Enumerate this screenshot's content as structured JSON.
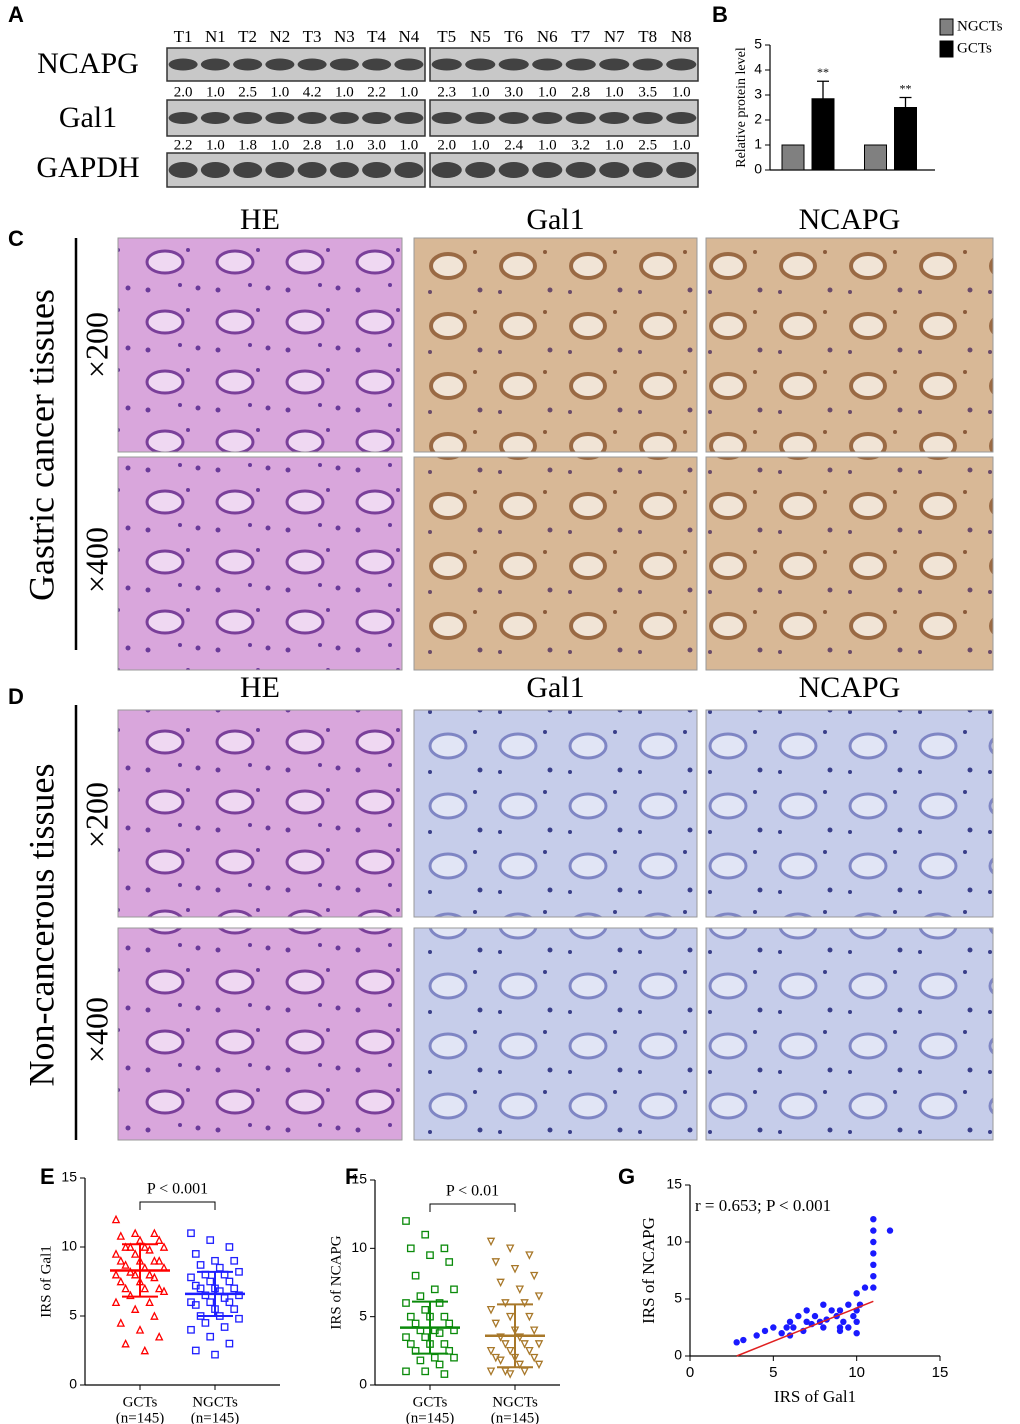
{
  "panel_labels": [
    "A",
    "B",
    "C",
    "D",
    "E",
    "F",
    "G"
  ],
  "blot": {
    "proteins": [
      "NCAPG",
      "Gal1",
      "GAPDH"
    ],
    "lanes": [
      "T1",
      "N1",
      "T2",
      "N2",
      "T3",
      "N3",
      "T4",
      "N4",
      "T5",
      "N5",
      "T6",
      "N6",
      "T7",
      "N7",
      "T8",
      "N8"
    ],
    "ncapg_ratios": [
      "2.0",
      "1.0",
      "2.5",
      "1.0",
      "4.2",
      "1.0",
      "2.2",
      "1.0",
      "2.3",
      "1.0",
      "3.0",
      "1.0",
      "2.8",
      "1.0",
      "3.5",
      "1.0"
    ],
    "gal1_ratios": [
      "2.2",
      "1.0",
      "1.8",
      "1.0",
      "2.8",
      "1.0",
      "3.0",
      "1.0",
      "2.0",
      "1.0",
      "2.4",
      "1.0",
      "3.2",
      "1.0",
      "2.5",
      "1.0"
    ]
  },
  "ihc": {
    "columns": [
      "HE",
      "Gal1",
      "NCAPG"
    ],
    "cancer_label": "Gastric cancer tissues",
    "noncancer_label": "Non-cancerous tissues",
    "magnifications": [
      "×200",
      "×400"
    ]
  },
  "chart_data": [
    {
      "type": "bar",
      "y_label": "Relative protein level",
      "categories": [
        null,
        null
      ],
      "series": [
        {
          "name": "NGCTs",
          "color": "#808080",
          "values": [
            1,
            1
          ]
        },
        {
          "name": "GCTs",
          "color": "#000000",
          "values": [
            2.85,
            2.5
          ],
          "errors": [
            0.7,
            0.4
          ],
          "annotations": [
            "**",
            "**"
          ]
        }
      ],
      "ylim": [
        0,
        5
      ],
      "yticks": [
        0,
        1,
        2,
        3,
        4,
        5
      ],
      "legend": "top-right"
    },
    {
      "type": "strip",
      "y_label": "IRS of Gal1",
      "annotation": "P < 0.001",
      "series": [
        {
          "name": "GCTs",
          "n_label": "(n=145)",
          "color": "#ff0000",
          "marker": "triangle",
          "mean": 8.3,
          "sd": 1.9,
          "values": [
            12,
            11,
            11,
            10.8,
            10.5,
            10.5,
            10,
            10,
            10,
            10,
            9.8,
            9.5,
            9.5,
            9,
            9,
            9,
            9,
            8.7,
            8.5,
            8.5,
            8.2,
            8,
            8,
            8,
            7.8,
            7.5,
            7.5,
            7,
            7,
            7,
            6.8,
            6.5,
            6,
            6,
            5.5,
            5,
            4.5,
            4,
            3.5,
            3,
            2.5
          ]
        },
        {
          "name": "NGCTs",
          "n_label": "(n=145)",
          "color": "#1f1fff",
          "marker": "square",
          "mean": 6.6,
          "sd": 1.6,
          "values": [
            11,
            10.5,
            10,
            9.5,
            9,
            9,
            8.7,
            8.5,
            8.2,
            8,
            8,
            7.8,
            7.5,
            7.5,
            7.2,
            7,
            7,
            7,
            6.8,
            6.5,
            6.5,
            6.3,
            6,
            6,
            6,
            5.8,
            5.5,
            5.5,
            5,
            5,
            4.8,
            4.5,
            4.2,
            4,
            3.5,
            3,
            2.5,
            2.2
          ]
        }
      ],
      "ylim": [
        0,
        15
      ],
      "yticks": [
        0,
        5,
        10,
        15
      ]
    },
    {
      "type": "strip",
      "y_label": "IRS of NCAPG",
      "annotation": "P < 0.01",
      "series": [
        {
          "name": "GCTs",
          "n_label": "(n=145)",
          "color": "#0a8a0a",
          "marker": "square",
          "mean": 4.2,
          "sd": 1.9,
          "values": [
            12,
            11,
            10,
            10,
            9.5,
            9,
            8,
            7,
            7,
            6.5,
            6,
            6,
            5.5,
            5,
            5,
            5,
            4.5,
            4.5,
            4,
            4,
            4,
            3.8,
            3.5,
            3.5,
            3,
            3,
            3,
            2.5,
            2.5,
            2,
            2,
            1.8,
            1.5,
            1,
            1,
            0.8
          ]
        },
        {
          "name": "NGCTs",
          "n_label": "(n=145)",
          "color": "#a8782a",
          "marker": "triangle-down",
          "mean": 3.6,
          "sd": 2.3,
          "values": [
            10.5,
            10,
            9.5,
            9,
            8.5,
            8,
            7.5,
            7,
            6.5,
            6,
            6,
            5.5,
            5,
            5,
            4.5,
            4,
            4,
            3.5,
            3.5,
            3,
            3,
            3,
            2.5,
            2.5,
            2.5,
            2,
            2,
            2,
            1.8,
            1.5,
            1.5,
            1,
            1,
            1,
            0.8
          ]
        }
      ],
      "ylim": [
        0,
        15
      ],
      "yticks": [
        0,
        5,
        10,
        15
      ]
    },
    {
      "type": "scatter",
      "x_label": "IRS of Gal1",
      "y_label": "IRS of NCAPG",
      "annotation": "r = 0.653; P < 0.001",
      "color": "#1a1aff",
      "x": [
        2.8,
        3.2,
        4,
        4.5,
        5,
        5.5,
        5.8,
        6,
        6,
        6.2,
        6.5,
        6.8,
        7,
        7,
        7.3,
        7.5,
        7.8,
        8,
        8,
        8.2,
        8.5,
        8.8,
        9,
        9,
        9,
        9.2,
        9.5,
        9.5,
        9.8,
        10,
        10,
        10,
        10,
        10.2,
        10.5,
        11,
        11,
        11,
        11,
        11,
        11,
        11,
        12
      ],
      "values": [
        1.2,
        1.4,
        1.8,
        2.2,
        2.5,
        2,
        2.5,
        1.8,
        3,
        2.5,
        3.5,
        2.2,
        3,
        4,
        2.8,
        3.5,
        3,
        2.5,
        4.5,
        3.2,
        4,
        3.5,
        2.5,
        4,
        2.2,
        3,
        4.5,
        2.5,
        3.5,
        2,
        3,
        4,
        5.5,
        4.5,
        6,
        6,
        7,
        8,
        9,
        10,
        11,
        12,
        11
      ],
      "trend": {
        "x": [
          2.8,
          11
        ],
        "values": [
          0,
          4.8
        ],
        "color": "#e02020"
      },
      "xlim": [
        0,
        15
      ],
      "xticks": [
        0,
        5,
        10,
        15
      ],
      "ylim": [
        0,
        15
      ],
      "yticks": [
        0,
        5,
        10,
        15
      ]
    }
  ]
}
